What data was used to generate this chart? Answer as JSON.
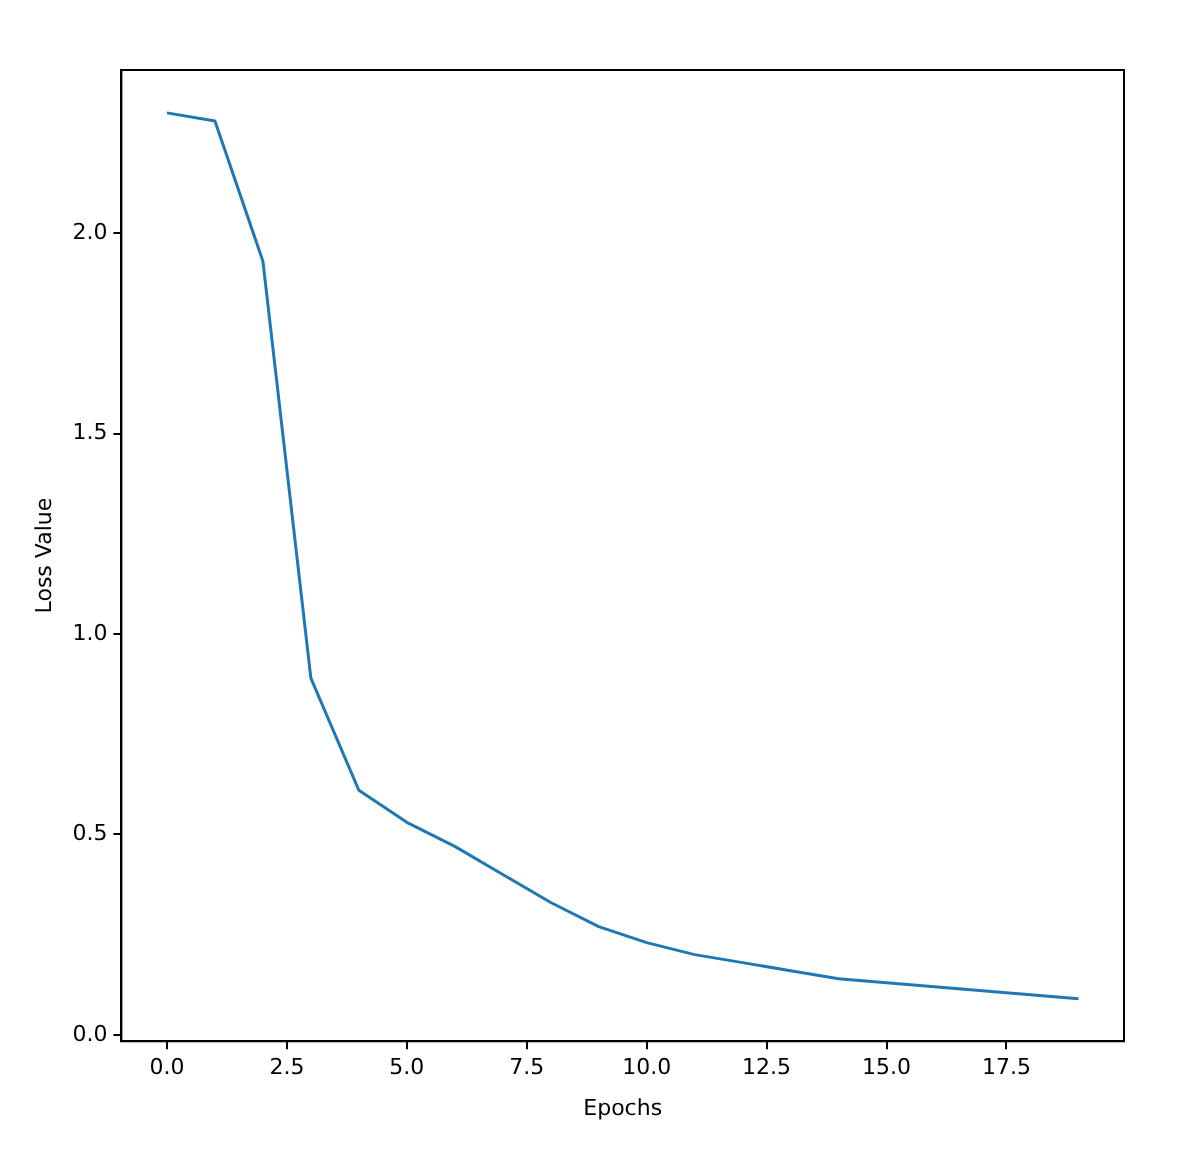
{
  "chart_data": {
    "type": "line",
    "xlabel": "Epochs",
    "ylabel": "Loss Value",
    "x": [
      0,
      1,
      2,
      3,
      4,
      5,
      6,
      7,
      8,
      9,
      10,
      11,
      12,
      13,
      14,
      15,
      16,
      17,
      18,
      19
    ],
    "series": [
      {
        "color": "#1f77b4",
        "values": [
          2.3,
          2.28,
          1.93,
          0.89,
          0.61,
          0.53,
          0.47,
          0.4,
          0.33,
          0.27,
          0.23,
          0.2,
          0.18,
          0.16,
          0.14,
          0.13,
          0.12,
          0.11,
          0.1,
          0.09
        ]
      }
    ],
    "xlim": [
      -0.95,
      19.95
    ],
    "xticks": [
      {
        "value": 0,
        "label": "0.0"
      },
      2.5,
      {
        "value": 5,
        "label": "5.0"
      },
      7.5,
      {
        "value": 10,
        "label": "10.0"
      },
      12.5,
      {
        "value": 15,
        "label": "15.0"
      },
      17.5
    ],
    "ylim": [
      -0.016,
      2.407
    ],
    "yticks": [
      {
        "value": 0,
        "label": "0.0"
      },
      0.5,
      {
        "value": 1,
        "label": "1.0"
      },
      1.5,
      {
        "value": 2,
        "label": "2.0"
      }
    ],
    "marker": "none",
    "line_style": "solid",
    "legend": false
  }
}
